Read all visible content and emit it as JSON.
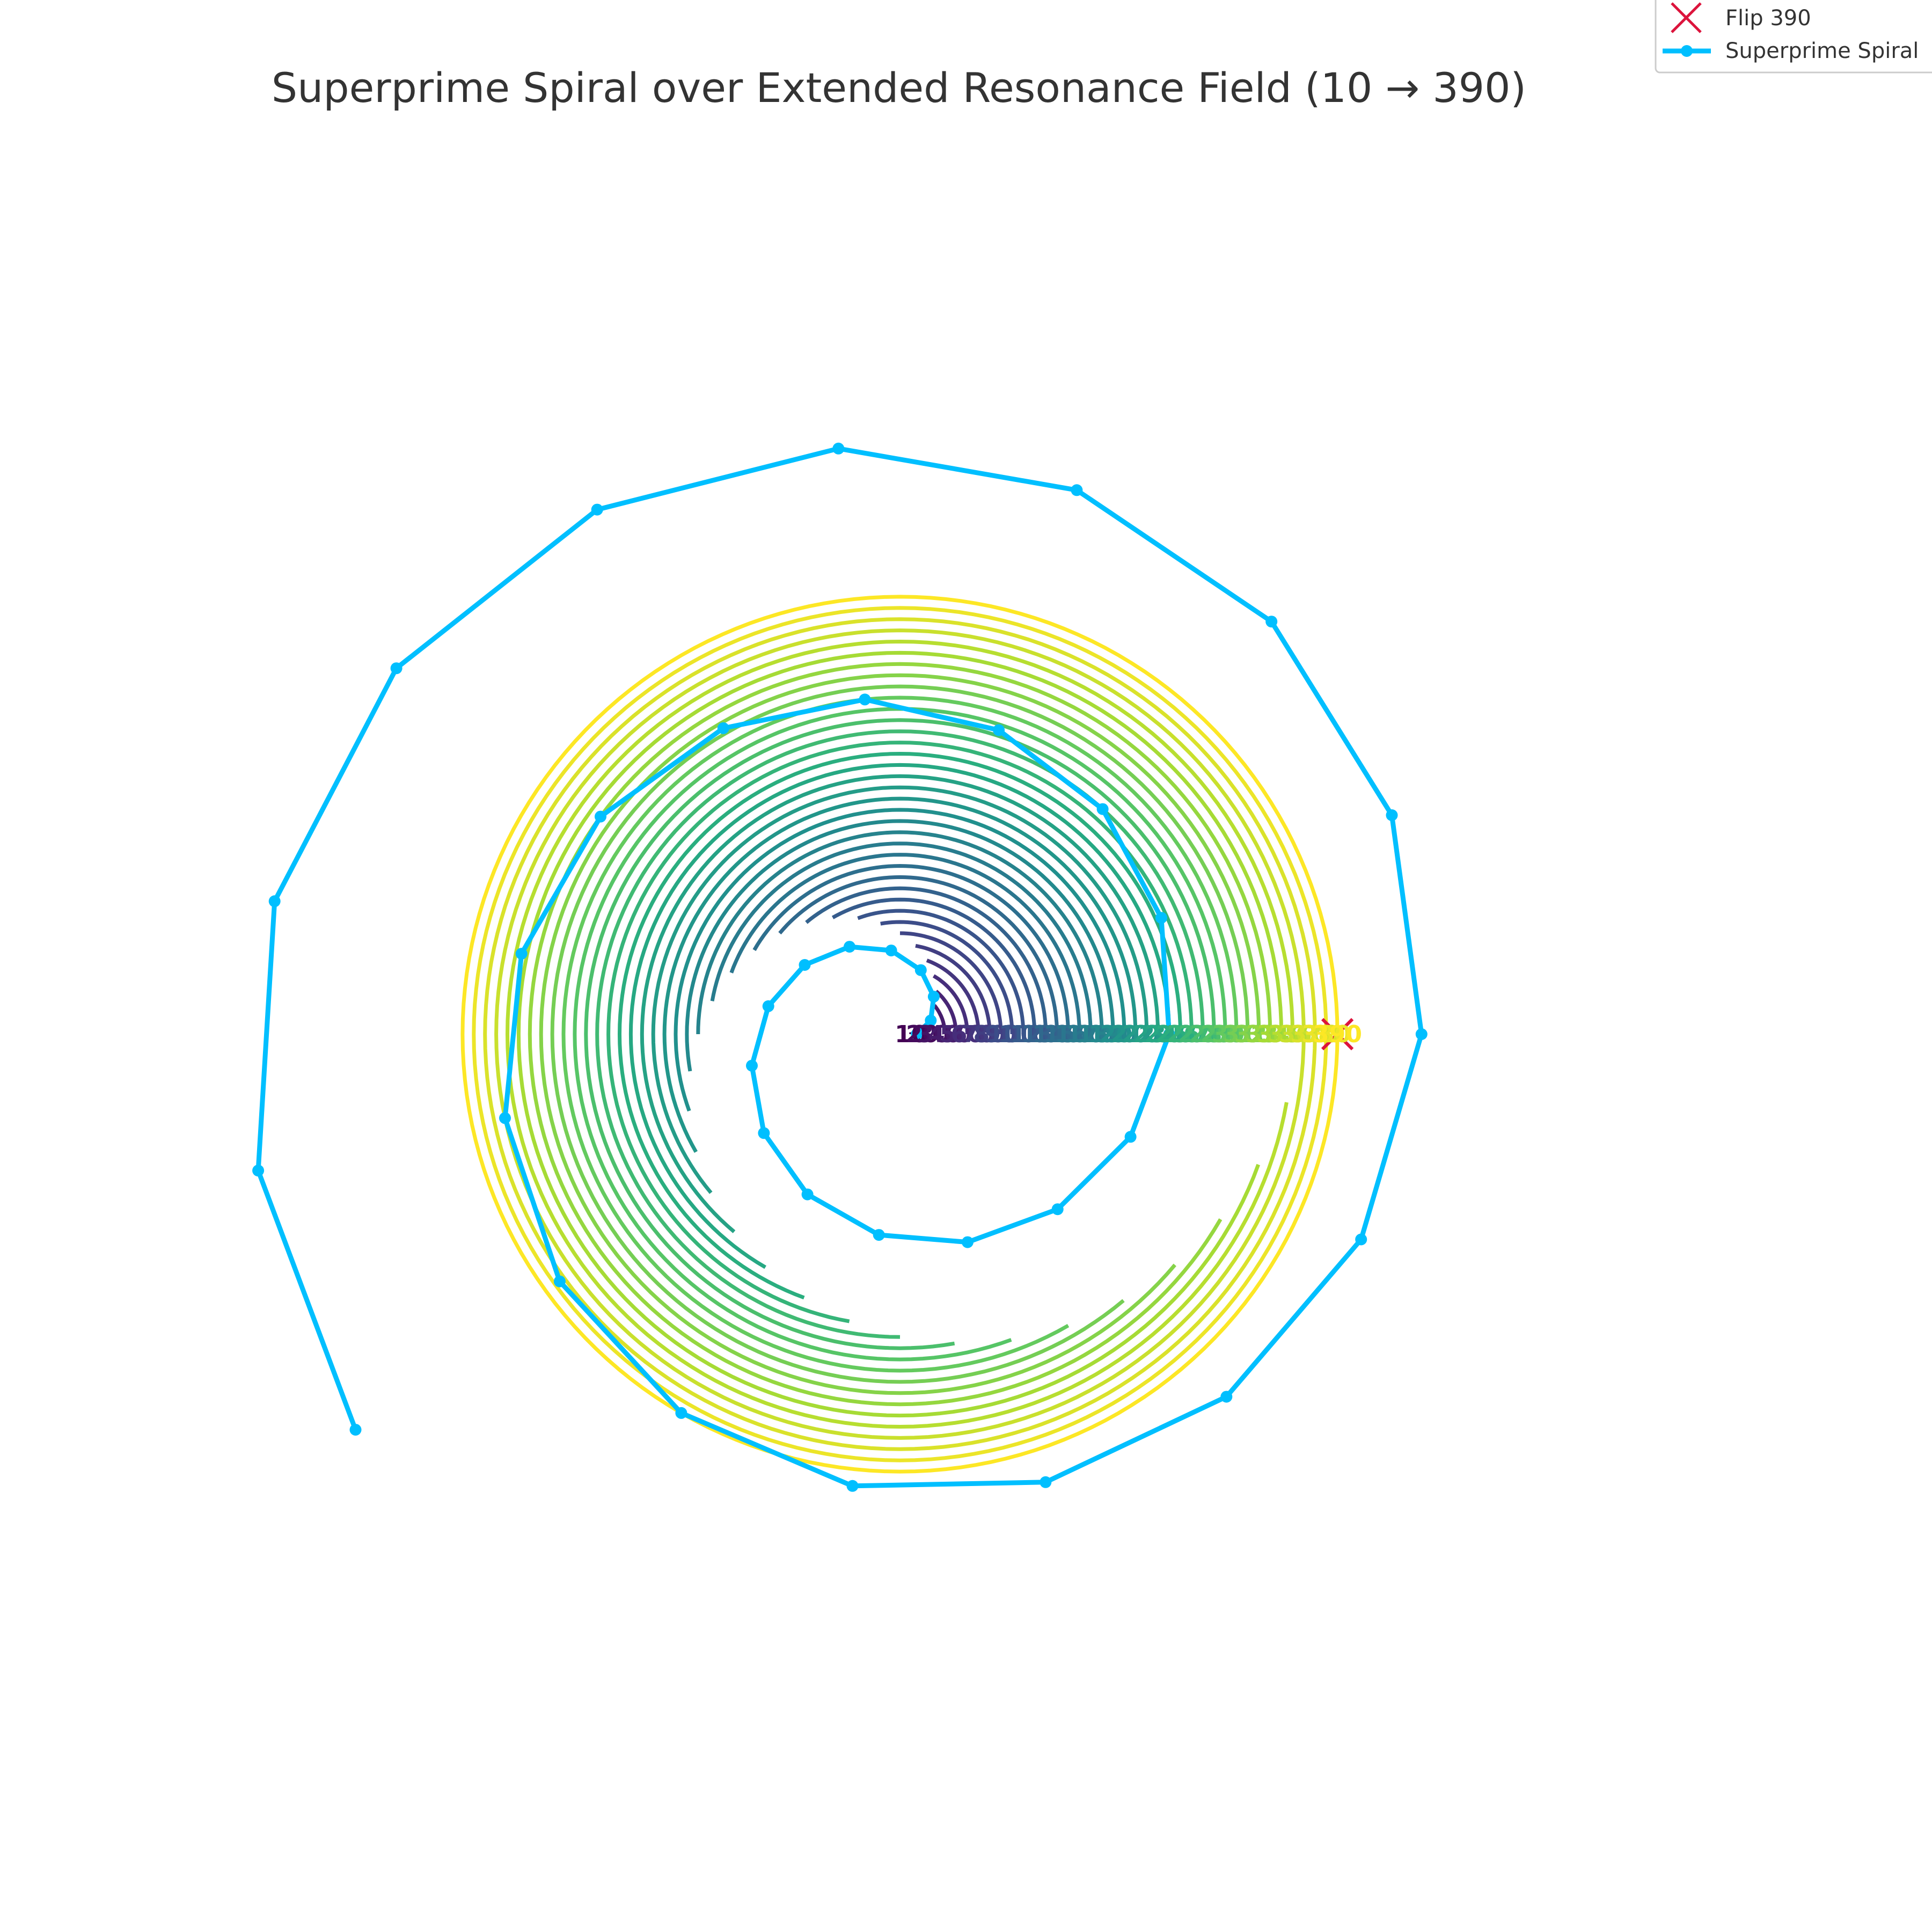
{
  "chart_data": {
    "type": "line",
    "title": "Superprime Spiral over Extended Resonance Field (10 → 390)",
    "resonance_field": {
      "values": [
        10,
        20,
        30,
        40,
        50,
        60,
        70,
        80,
        90,
        100,
        110,
        120,
        130,
        140,
        150,
        160,
        170,
        180,
        190,
        200,
        210,
        220,
        230,
        240,
        250,
        260,
        270,
        280,
        290,
        300,
        310,
        320,
        330,
        340,
        350,
        360,
        370,
        380,
        390
      ],
      "labels": [
        "10",
        "20",
        "30",
        "40",
        "50",
        "60",
        "70",
        "80",
        "90",
        "100",
        "110",
        "120",
        "130",
        "140",
        "150",
        "160",
        "170",
        "180",
        "190",
        "200",
        "210",
        "220",
        "230",
        "240",
        "250",
        "260",
        "270",
        "280",
        "290",
        "300",
        "310",
        "320",
        "330",
        "340",
        "350",
        "360",
        "370",
        "380",
        "390"
      ],
      "arc_extent_deg": [
        10,
        20,
        30,
        40,
        50,
        60,
        70,
        80,
        90,
        100,
        110,
        120,
        130,
        140,
        150,
        160,
        170,
        180,
        190,
        200,
        210,
        220,
        230,
        240,
        250,
        260,
        270,
        280,
        290,
        300,
        310,
        320,
        330,
        340,
        350,
        360,
        360,
        360,
        360
      ],
      "colormap": "viridis"
    },
    "series": [
      {
        "name": "Superprime Spiral",
        "color": "#00BFFF",
        "marker": "circle",
        "points": [
          [
            15,
            0
          ],
          [
            30,
            24
          ],
          [
            45,
            48
          ],
          [
            60,
            72
          ],
          [
            75,
            96
          ],
          [
            90,
            120
          ],
          [
            105,
            144
          ],
          [
            120,
            168
          ],
          [
            135,
            192
          ],
          [
            150,
            216
          ],
          [
            165,
            240
          ],
          [
            180,
            264
          ],
          [
            195,
            288
          ],
          [
            210,
            312
          ],
          [
            225,
            336
          ],
          [
            240,
            360
          ],
          [
            255,
            24
          ],
          [
            270,
            48
          ],
          [
            285,
            72
          ],
          [
            300,
            96
          ],
          [
            315,
            120
          ],
          [
            330,
            144
          ],
          [
            345,
            168
          ],
          [
            360,
            192
          ],
          [
            375,
            216
          ],
          [
            390,
            240
          ],
          [
            405,
            264
          ],
          [
            420,
            288
          ],
          [
            435,
            312
          ],
          [
            450,
            336
          ],
          [
            465,
            360
          ],
          [
            480,
            24
          ],
          [
            495,
            48
          ],
          [
            510,
            72
          ],
          [
            525,
            96
          ],
          [
            540,
            120
          ],
          [
            555,
            144
          ],
          [
            570,
            168
          ],
          [
            585,
            192
          ],
          [
            600,
            216
          ]
        ]
      }
    ],
    "markers": [
      {
        "name": "Flip 390",
        "value": 390,
        "angle_deg": 0,
        "marker": "x",
        "color": "#DC143C"
      }
    ],
    "point_axis": {
      "radial_unit": "r",
      "angular_unit": "deg"
    },
    "axes_visible": false,
    "grid": false,
    "legend": {
      "position": "top-right",
      "entries": [
        {
          "label": "Flip 390",
          "marker": "x",
          "color": "#DC143C"
        },
        {
          "label": "Superprime Spiral",
          "marker": "line-circle",
          "color": "#00BFFF"
        }
      ]
    }
  }
}
